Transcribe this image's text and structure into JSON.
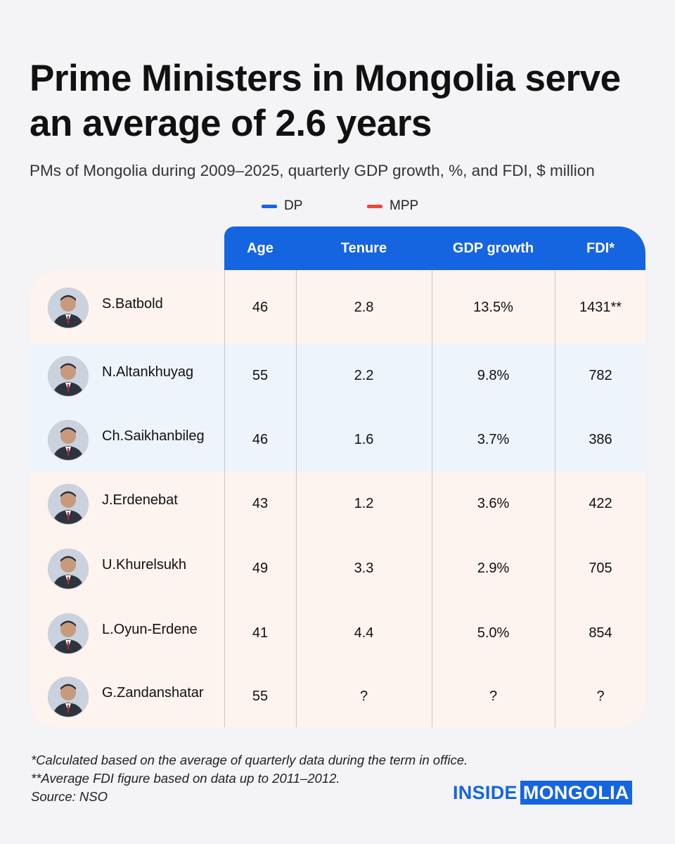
{
  "chart_data": {
    "type": "table",
    "title": "Prime Ministers in Mongolia serve an average of 2.6 years",
    "subtitle": "PMs of Mongolia during 2009–2025, quarterly GDP growth, %, and FDI, $ million",
    "legend": [
      {
        "label": "DP",
        "color": "#1565e0"
      },
      {
        "label": "MPP",
        "color": "#e8473f"
      }
    ],
    "columns": [
      "Age",
      "Tenure",
      "GDP growth",
      "FDI*"
    ],
    "rows": [
      {
        "name": "S.Batbold",
        "party": "MPP",
        "age": "46",
        "tenure": "2.8",
        "gdp": "13.5%",
        "fdi": "1431**"
      },
      {
        "name": "N.Altankhuyag",
        "party": "DP",
        "age": "55",
        "tenure": "2.2",
        "gdp": "9.8%",
        "fdi": "782"
      },
      {
        "name": "Ch.Saikhanbileg",
        "party": "DP",
        "age": "46",
        "tenure": "1.6",
        "gdp": "3.7%",
        "fdi": "386"
      },
      {
        "name": "J.Erdenebat",
        "party": "MPP",
        "age": "43",
        "tenure": "1.2",
        "gdp": "3.6%",
        "fdi": "422"
      },
      {
        "name": "U.Khurelsukh",
        "party": "MPP",
        "age": "49",
        "tenure": "3.3",
        "gdp": "2.9%",
        "fdi": "705"
      },
      {
        "name": "L.Oyun-Erdene",
        "party": "MPP",
        "age": "41",
        "tenure": "4.4",
        "gdp": "5.0%",
        "fdi": "854"
      },
      {
        "name": "G.Zandanshatar",
        "party": "MPP",
        "age": "55",
        "tenure": "?",
        "gdp": "?",
        "fdi": "?"
      }
    ]
  },
  "colors": {
    "background": "#f4f4f7",
    "header": "#1565e0",
    "dp_row": "#eef4fb",
    "mpp_row": "#fdf3ef",
    "text": "#111111"
  },
  "icons": {
    "avatar": "person-portrait-icon"
  },
  "footnotes": [
    "*Calculated based on the average of quarterly data during the term in office.",
    "**Average FDI figure based on data up to 2011–2012.",
    "Source: NSO"
  ],
  "logo": {
    "part1": "INSIDE",
    "part2": "MONGOLIA"
  }
}
